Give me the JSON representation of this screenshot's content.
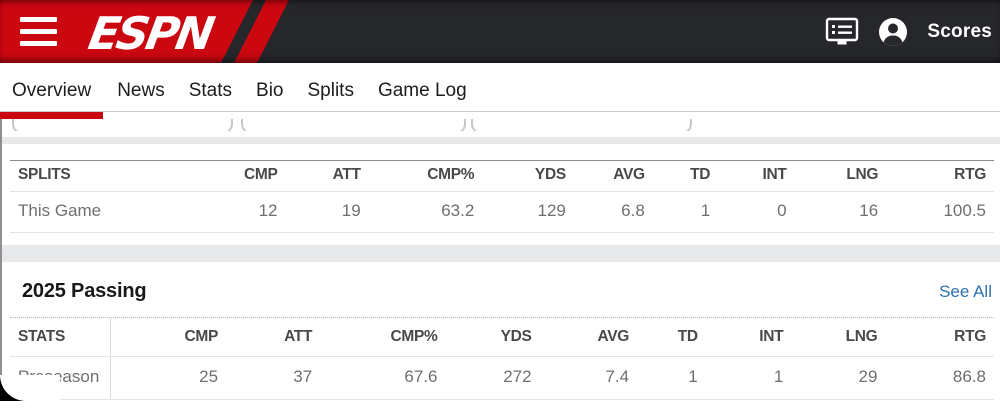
{
  "header": {
    "logo_text": "ESPN",
    "scores_label": "Scores",
    "colors": {
      "banner_bg": "#26272b",
      "espn_red": "#cb0710",
      "link_blue": "#2d72b2"
    }
  },
  "tabs": [
    {
      "label": "Overview",
      "active": true
    },
    {
      "label": "News"
    },
    {
      "label": "Stats"
    },
    {
      "label": "Bio"
    },
    {
      "label": "Splits"
    },
    {
      "label": "Game Log"
    }
  ],
  "splits_table": {
    "columns": [
      "SPLITS",
      "CMP",
      "ATT",
      "CMP%",
      "YDS",
      "AVG",
      "TD",
      "INT",
      "LNG",
      "RTG"
    ],
    "rows": [
      [
        "This Game",
        "12",
        "19",
        "63.2",
        "129",
        "6.8",
        "1",
        "0",
        "16",
        "100.5"
      ]
    ]
  },
  "passing_section": {
    "title": "2025 Passing",
    "see_all_label": "See All",
    "table": {
      "columns": [
        "STATS",
        "CMP",
        "ATT",
        "CMP%",
        "YDS",
        "AVG",
        "TD",
        "INT",
        "LNG",
        "RTG"
      ],
      "rows": [
        [
          "Preseason",
          "25",
          "37",
          "67.6",
          "272",
          "7.4",
          "1",
          "1",
          "29",
          "86.8"
        ]
      ]
    }
  }
}
